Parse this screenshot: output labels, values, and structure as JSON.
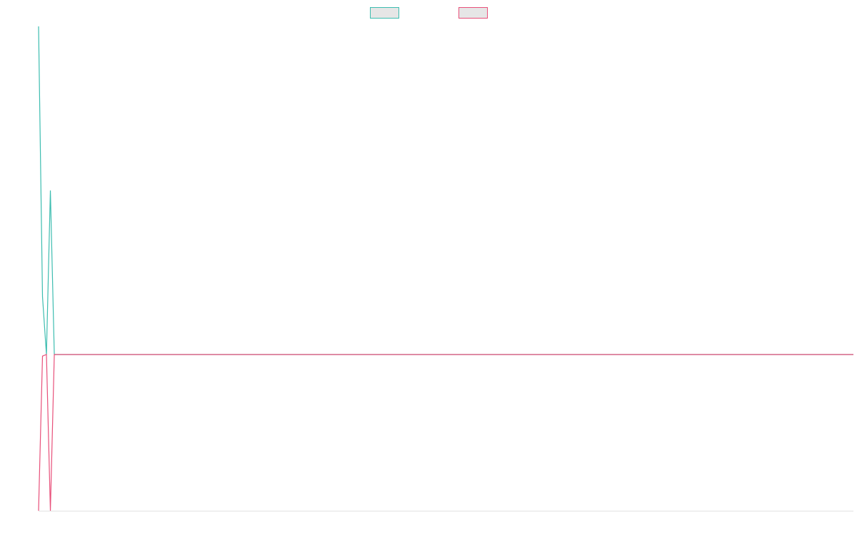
{
  "chart_data": {
    "type": "line",
    "legend": "top",
    "x": [
      0,
      1,
      2,
      3,
      4,
      207
    ],
    "xlim": [
      0,
      207
    ],
    "ylim": [
      -1,
      2.1
    ],
    "series": [
      {
        "color": "#3dbdb0",
        "values": [
          2.1,
          0.37,
          0,
          1.05,
          0,
          0
        ]
      },
      {
        "color": "#e8507a",
        "values": [
          -1,
          -0.01,
          0,
          -1,
          0,
          0
        ]
      }
    ]
  }
}
